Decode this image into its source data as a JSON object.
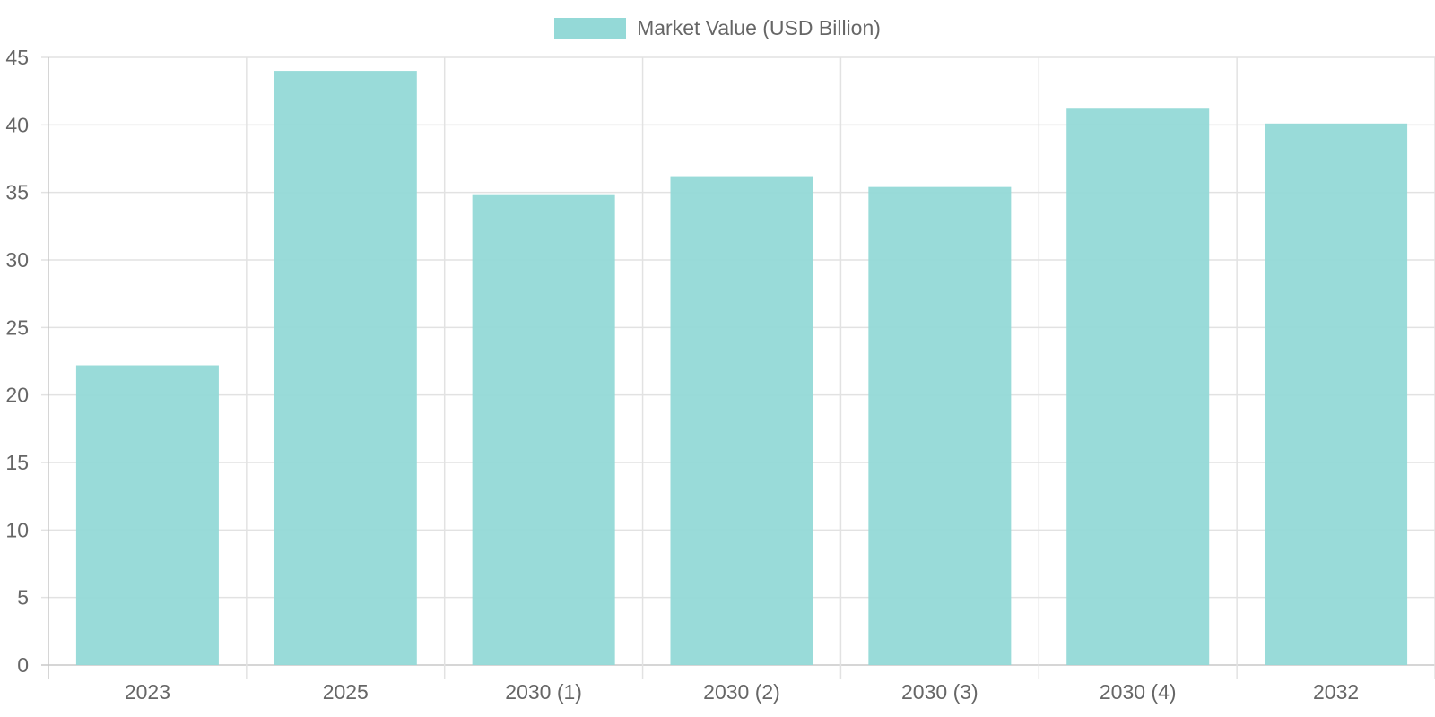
{
  "chart_data": {
    "type": "bar",
    "categories": [
      "2023",
      "2025",
      "2030 (1)",
      "2030 (2)",
      "2030 (3)",
      "2030 (4)",
      "2032"
    ],
    "series": [
      {
        "name": "Market Value (USD Billion)",
        "values": [
          22.2,
          44.0,
          34.8,
          36.2,
          35.4,
          41.2,
          40.1
        ]
      }
    ],
    "title": "",
    "xlabel": "",
    "ylabel": "",
    "ylim": [
      0,
      45
    ],
    "y_ticks": [
      0,
      5,
      10,
      15,
      20,
      25,
      30,
      35,
      40,
      45
    ],
    "grid": true,
    "legend_position": "top-center",
    "colors": {
      "bar_fill": "#94d9d7",
      "grid": "#e2e2e2",
      "axis": "#c8c8c8",
      "text": "#666666"
    }
  }
}
